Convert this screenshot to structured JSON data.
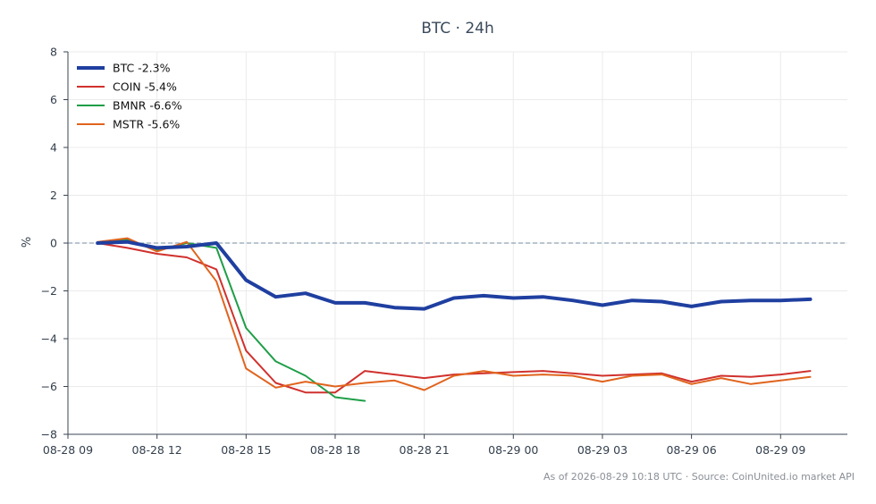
{
  "chart_data": {
    "type": "line",
    "title": "BTC · 24h",
    "xlabel": "",
    "ylabel": "%",
    "ylim": [
      -8,
      8
    ],
    "yticks": [
      -8,
      -6,
      -4,
      -2,
      0,
      2,
      4,
      6,
      8
    ],
    "ytick_labels": [
      "−8",
      "−6",
      "−4",
      "−2",
      "0",
      "2",
      "4",
      "6",
      "8"
    ],
    "xlim": [
      "2026-08-28 09:00",
      "2026-08-29 11:15"
    ],
    "xticks": [
      "2026-08-28 09:00",
      "2026-08-28 12:00",
      "2026-08-28 15:00",
      "2026-08-28 18:00",
      "2026-08-28 21:00",
      "2026-08-29 00:00",
      "2026-08-29 03:00",
      "2026-08-29 06:00",
      "2026-08-29 09:00"
    ],
    "xtick_labels": [
      "08-28 09",
      "08-28 12",
      "08-28 15",
      "08-28 18",
      "08-28 21",
      "08-29 00",
      "08-29 03",
      "08-29 06",
      "08-29 09"
    ],
    "grid": true,
    "reference_line": 0,
    "legend_position": "top-left",
    "series": [
      {
        "name": "BTC -2.3%",
        "color": "#1f3fa0",
        "x": [
          "2026-08-28 10:00",
          "2026-08-28 11:00",
          "2026-08-28 12:00",
          "2026-08-28 13:00",
          "2026-08-28 14:00",
          "2026-08-28 15:00",
          "2026-08-28 16:00",
          "2026-08-28 17:00",
          "2026-08-28 18:00",
          "2026-08-28 19:00",
          "2026-08-28 20:00",
          "2026-08-28 21:00",
          "2026-08-28 22:00",
          "2026-08-28 23:00",
          "2026-08-29 00:00",
          "2026-08-29 01:00",
          "2026-08-29 02:00",
          "2026-08-29 03:00",
          "2026-08-29 04:00",
          "2026-08-29 05:00",
          "2026-08-29 06:00",
          "2026-08-29 07:00",
          "2026-08-29 08:00",
          "2026-08-29 09:00",
          "2026-08-29 10:00"
        ],
        "y": [
          0.0,
          0.05,
          -0.2,
          -0.15,
          0.0,
          -1.55,
          -2.25,
          -2.1,
          -2.5,
          -2.5,
          -2.7,
          -2.75,
          -2.3,
          -2.2,
          -2.3,
          -2.25,
          -2.4,
          -2.6,
          -2.4,
          -2.45,
          -2.65,
          -2.45,
          -2.4,
          -2.4,
          -2.35
        ]
      },
      {
        "name": "COIN -5.4%",
        "color": "#d0312d",
        "x": [
          "2026-08-28 10:00",
          "2026-08-28 11:00",
          "2026-08-28 12:00",
          "2026-08-28 13:00",
          "2026-08-28 14:00",
          "2026-08-28 15:00",
          "2026-08-28 16:00",
          "2026-08-28 17:00",
          "2026-08-28 18:00",
          "2026-08-28 19:00",
          "2026-08-28 21:00",
          "2026-08-28 22:00",
          "2026-08-28 23:00",
          "2026-08-29 00:00",
          "2026-08-29 01:00",
          "2026-08-29 02:00",
          "2026-08-29 03:00",
          "2026-08-29 04:00",
          "2026-08-29 05:00",
          "2026-08-29 06:00",
          "2026-08-29 07:00",
          "2026-08-29 08:00",
          "2026-08-29 09:00",
          "2026-08-29 10:00"
        ],
        "y": [
          0.0,
          -0.2,
          -0.45,
          -0.6,
          -1.1,
          -4.5,
          -5.85,
          -6.25,
          -6.25,
          -5.35,
          -5.65,
          -5.5,
          -5.45,
          -5.4,
          -5.35,
          -5.45,
          -5.55,
          -5.5,
          -5.45,
          -5.8,
          -5.55,
          -5.6,
          -5.5,
          -5.35
        ]
      },
      {
        "name": "BMNR -6.6%",
        "color": "#1f9e48",
        "x": [
          "2026-08-28 10:00",
          "2026-08-28 11:00",
          "2026-08-28 12:00",
          "2026-08-28 13:00",
          "2026-08-28 14:00",
          "2026-08-28 15:00",
          "2026-08-28 16:00",
          "2026-08-28 17:00",
          "2026-08-28 18:00",
          "2026-08-28 19:00"
        ],
        "y": [
          0.0,
          0.15,
          -0.3,
          0.0,
          -0.2,
          -3.55,
          -4.95,
          -5.55,
          -6.45,
          -6.6
        ]
      },
      {
        "name": "MSTR -5.6%",
        "color": "#e0641e",
        "x": [
          "2026-08-28 10:00",
          "2026-08-28 11:00",
          "2026-08-28 12:00",
          "2026-08-28 13:00",
          "2026-08-28 14:00",
          "2026-08-28 15:00",
          "2026-08-28 16:00",
          "2026-08-28 17:00",
          "2026-08-28 18:00",
          "2026-08-28 19:00",
          "2026-08-28 20:00",
          "2026-08-28 21:00",
          "2026-08-28 22:00",
          "2026-08-28 23:00",
          "2026-08-29 00:00",
          "2026-08-29 01:00",
          "2026-08-29 02:00",
          "2026-08-29 03:00",
          "2026-08-29 04:00",
          "2026-08-29 05:00",
          "2026-08-29 06:00",
          "2026-08-29 07:00",
          "2026-08-29 08:00",
          "2026-08-29 09:00",
          "2026-08-29 10:00"
        ],
        "y": [
          0.05,
          0.2,
          -0.35,
          0.05,
          -1.6,
          -5.25,
          -6.05,
          -5.8,
          -6.0,
          -5.85,
          -5.75,
          -6.15,
          -5.55,
          -5.35,
          -5.55,
          -5.5,
          -5.55,
          -5.8,
          -5.55,
          -5.5,
          -5.9,
          -5.65,
          -5.9,
          -5.75,
          -5.6
        ]
      }
    ]
  },
  "footer": "As of 2026-08-29 10:18 UTC · Source: CoinUnited.io market API"
}
